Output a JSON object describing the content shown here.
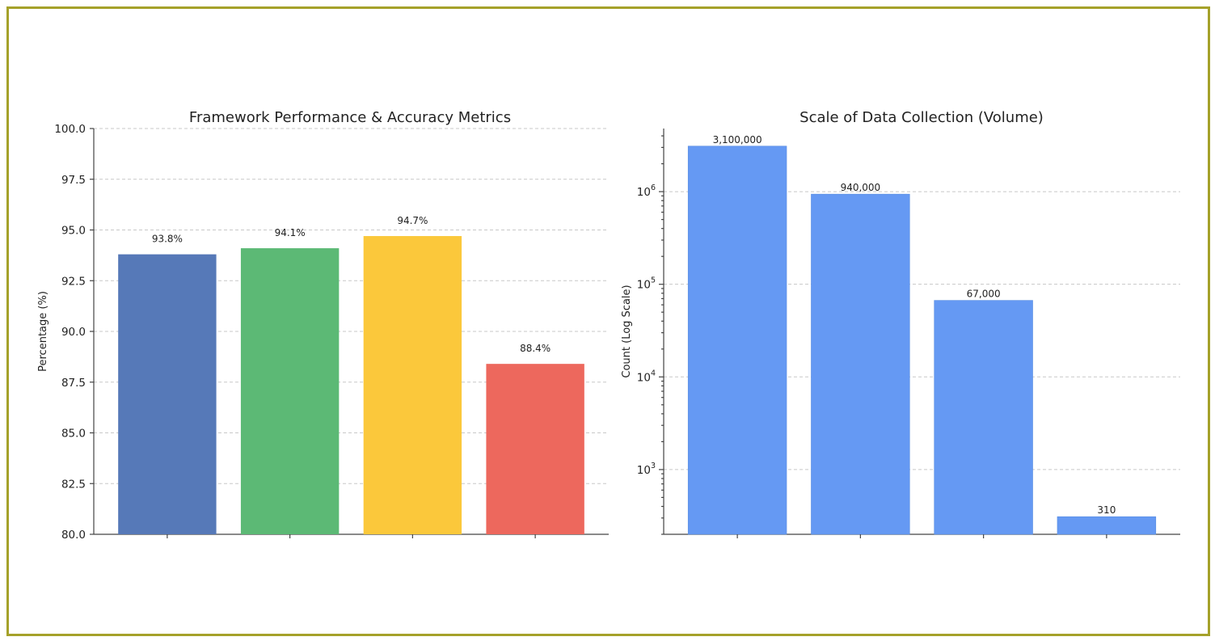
{
  "frame_color": "#a5a12a",
  "chart_data": [
    {
      "type": "bar",
      "title": "Framework Performance & Accuracy Metrics",
      "xlabel": "",
      "ylabel": "Percentage (%)",
      "ylim": [
        80,
        100
      ],
      "yticks": [
        80.0,
        82.5,
        85.0,
        87.5,
        90.0,
        92.5,
        95.0,
        97.5,
        100.0
      ],
      "ytick_labels": [
        "80.0",
        "82.5",
        "85.0",
        "87.5",
        "90.0",
        "92.5",
        "95.0",
        "97.5",
        "100.0"
      ],
      "grid": "horizontal dashed",
      "values": [
        93.8,
        94.1,
        94.7,
        88.4
      ],
      "value_labels": [
        "93.8%",
        "94.1%",
        "94.7%",
        "88.4%"
      ],
      "colors": [
        "#5679b8",
        "#5cb975",
        "#fbc83b",
        "#ed685d"
      ]
    },
    {
      "type": "bar",
      "title": "Scale of Data Collection (Volume)",
      "xlabel": "",
      "ylabel": "Count (Log Scale)",
      "yscale": "log",
      "ylim": [
        200,
        4800000
      ],
      "yticks": [
        1000,
        10000,
        100000,
        1000000
      ],
      "ytick_exponents": [
        "3",
        "4",
        "5",
        "6"
      ],
      "grid": "horizontal dashed",
      "values": [
        3100000,
        940000,
        67000,
        310
      ],
      "value_labels": [
        "3,100,000",
        "940,000",
        "67,000",
        "310"
      ],
      "colors": [
        "#6599f3",
        "#6599f3",
        "#6599f3",
        "#6599f3"
      ]
    }
  ]
}
